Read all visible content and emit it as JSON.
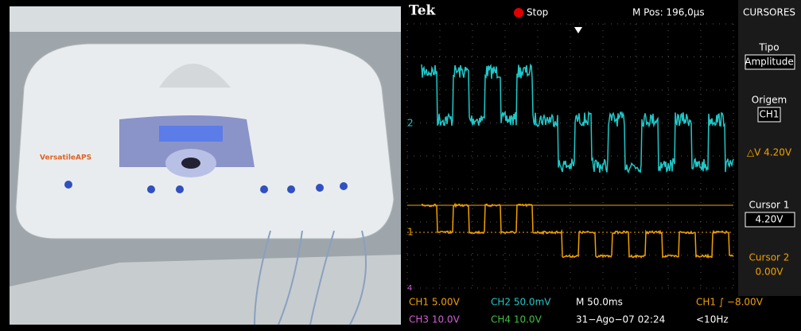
{
  "photo": {
    "brand": "VersatileAPS"
  },
  "scope": {
    "header": {
      "logo": "Tek",
      "status": "Stop",
      "position": "M Pos: 196,0µs",
      "menu_title": "CURSORES"
    },
    "markers": {
      "ch2": "2",
      "ch1": "1",
      "ch4": "4"
    },
    "menu": [
      {
        "label": "Tipo",
        "value": "Amplitude"
      },
      {
        "label": "Origem",
        "value": "CH1"
      },
      {
        "label": "△V 4.20V"
      },
      {
        "label": "Cursor 1",
        "value": "4.20V"
      },
      {
        "label": "Cursor 2",
        "value": "0.00V"
      }
    ],
    "footer": {
      "ch1": "CH1  5.00V",
      "ch2": "CH2  50.0mV",
      "time": "M 50.0ms",
      "trigger": "CH1 ∫ −8.00V",
      "ch3": "CH3  10.0V",
      "ch4": "CH4  10.0V",
      "date": "31−Ago−07 02:24",
      "freq": "<10Hz"
    }
  }
}
